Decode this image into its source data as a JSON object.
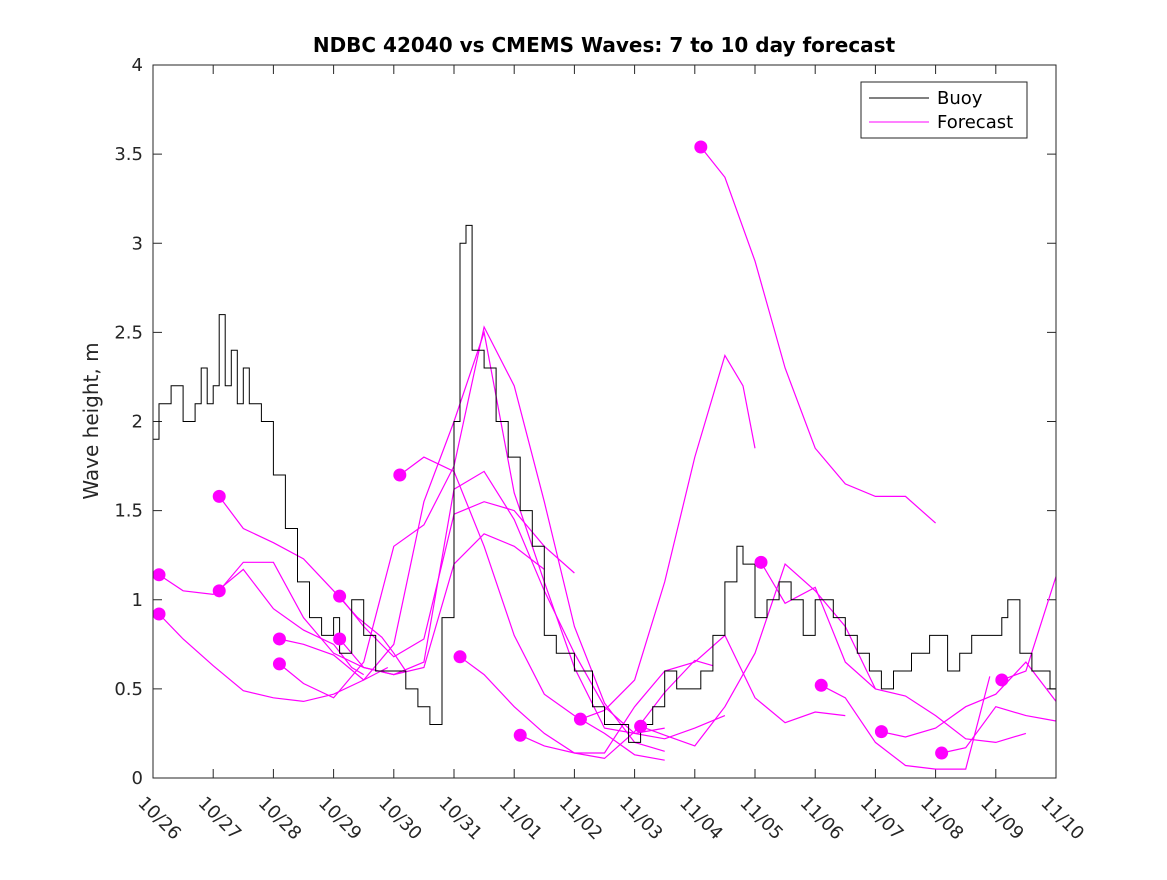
{
  "chart_data": {
    "type": "line",
    "title": "NDBC 42040 vs CMEMS Waves: 7 to 10 day forecast",
    "xlabel": "",
    "ylabel": "Wave height, m",
    "xlim": [
      0,
      15
    ],
    "ylim": [
      0,
      4
    ],
    "x_ticks": [
      0,
      1,
      2,
      3,
      4,
      5,
      6,
      7,
      8,
      9,
      10,
      11,
      12,
      13,
      14,
      15
    ],
    "x_tick_labels": [
      "10/26",
      "10/27",
      "10/28",
      "10/29",
      "10/30",
      "10/31",
      "11/01",
      "11/02",
      "11/03",
      "11/04",
      "11/05",
      "11/06",
      "11/07",
      "11/08",
      "11/09",
      "11/10"
    ],
    "y_ticks": [
      0,
      0.5,
      1,
      1.5,
      2,
      2.5,
      3,
      3.5,
      4
    ],
    "y_tick_labels": [
      "0",
      "0.5",
      "1",
      "1.5",
      "2",
      "2.5",
      "3",
      "3.5",
      "4"
    ],
    "legend": {
      "position": "top-right",
      "entries": [
        {
          "name": "Buoy",
          "color": "#000000"
        },
        {
          "name": "Forecast",
          "color": "#ff00ff"
        }
      ]
    },
    "buoy": {
      "name": "Buoy",
      "color": "#000000",
      "points": [
        [
          0,
          1.9
        ],
        [
          0.1,
          2.1
        ],
        [
          0.3,
          2.2
        ],
        [
          0.5,
          2.0
        ],
        [
          0.7,
          2.1
        ],
        [
          0.8,
          2.3
        ],
        [
          0.9,
          2.1
        ],
        [
          1.0,
          2.2
        ],
        [
          1.1,
          2.6
        ],
        [
          1.2,
          2.2
        ],
        [
          1.3,
          2.4
        ],
        [
          1.4,
          2.1
        ],
        [
          1.5,
          2.3
        ],
        [
          1.6,
          2.1
        ],
        [
          1.8,
          2.0
        ],
        [
          2.0,
          1.7
        ],
        [
          2.2,
          1.4
        ],
        [
          2.4,
          1.1
        ],
        [
          2.6,
          0.9
        ],
        [
          2.8,
          0.8
        ],
        [
          3.0,
          0.9
        ],
        [
          3.1,
          0.7
        ],
        [
          3.3,
          1.0
        ],
        [
          3.5,
          0.8
        ],
        [
          3.7,
          0.6
        ],
        [
          4.0,
          0.6
        ],
        [
          4.2,
          0.5
        ],
        [
          4.4,
          0.4
        ],
        [
          4.6,
          0.3
        ],
        [
          4.8,
          0.9
        ],
        [
          5.0,
          2.0
        ],
        [
          5.1,
          3.0
        ],
        [
          5.2,
          3.1
        ],
        [
          5.3,
          2.4
        ],
        [
          5.5,
          2.3
        ],
        [
          5.7,
          2.0
        ],
        [
          5.9,
          1.8
        ],
        [
          6.1,
          1.5
        ],
        [
          6.3,
          1.3
        ],
        [
          6.5,
          0.8
        ],
        [
          6.7,
          0.7
        ],
        [
          7.0,
          0.6
        ],
        [
          7.3,
          0.4
        ],
        [
          7.5,
          0.3
        ],
        [
          7.7,
          0.3
        ],
        [
          7.9,
          0.2
        ],
        [
          8.1,
          0.3
        ],
        [
          8.3,
          0.4
        ],
        [
          8.5,
          0.6
        ],
        [
          8.7,
          0.5
        ],
        [
          8.9,
          0.5
        ],
        [
          9.1,
          0.6
        ],
        [
          9.3,
          0.8
        ],
        [
          9.5,
          1.1
        ],
        [
          9.7,
          1.3
        ],
        [
          9.8,
          1.2
        ],
        [
          10.0,
          0.9
        ],
        [
          10.2,
          1.0
        ],
        [
          10.4,
          1.1
        ],
        [
          10.6,
          1.0
        ],
        [
          10.8,
          0.8
        ],
        [
          11.0,
          1.0
        ],
        [
          11.3,
          0.9
        ],
        [
          11.5,
          0.8
        ],
        [
          11.7,
          0.7
        ],
        [
          11.9,
          0.6
        ],
        [
          12.1,
          0.5
        ],
        [
          12.3,
          0.6
        ],
        [
          12.6,
          0.7
        ],
        [
          12.9,
          0.8
        ],
        [
          13.2,
          0.6
        ],
        [
          13.4,
          0.7
        ],
        [
          13.6,
          0.8
        ],
        [
          13.9,
          0.8
        ],
        [
          14.1,
          0.9
        ],
        [
          14.2,
          1.0
        ],
        [
          14.4,
          0.7
        ],
        [
          14.6,
          0.6
        ],
        [
          14.9,
          0.5
        ],
        [
          15.0,
          0.4
        ]
      ]
    },
    "forecast_series": [
      {
        "name": "Forecast",
        "points": [
          [
            0.1,
            1.14
          ],
          [
            0.5,
            1.05
          ],
          [
            1.0,
            1.03
          ],
          [
            1.5,
            1.17
          ],
          [
            2.0,
            0.95
          ],
          [
            2.5,
            0.83
          ],
          [
            3.0,
            0.75
          ],
          [
            3.3,
            0.62
          ],
          [
            3.5,
            0.58
          ]
        ]
      },
      {
        "name": "Forecast",
        "points": [
          [
            0.1,
            0.92
          ],
          [
            0.5,
            0.78
          ],
          [
            1.0,
            0.63
          ],
          [
            1.5,
            0.49
          ],
          [
            2.0,
            0.45
          ],
          [
            2.5,
            0.43
          ],
          [
            3.0,
            0.47
          ],
          [
            3.5,
            0.55
          ],
          [
            3.9,
            0.62
          ]
        ]
      },
      {
        "name": "Forecast",
        "points": [
          [
            1.1,
            1.58
          ],
          [
            1.5,
            1.4
          ],
          [
            2.0,
            1.32
          ],
          [
            2.5,
            1.23
          ],
          [
            3.0,
            1.05
          ],
          [
            3.4,
            0.9
          ],
          [
            3.8,
            0.79
          ],
          [
            4.0,
            0.7
          ],
          [
            4.2,
            0.6
          ]
        ]
      },
      {
        "name": "Forecast",
        "points": [
          [
            1.1,
            1.05
          ],
          [
            1.5,
            1.21
          ],
          [
            2.0,
            1.21
          ],
          [
            2.5,
            0.9
          ],
          [
            3.0,
            0.7
          ],
          [
            3.5,
            0.62
          ],
          [
            4.0,
            0.58
          ],
          [
            4.5,
            0.62
          ],
          [
            5.0,
            1.2
          ],
          [
            5.5,
            1.37
          ],
          [
            6.0,
            1.3
          ],
          [
            6.5,
            1.17
          ]
        ]
      },
      {
        "name": "Forecast",
        "points": [
          [
            2.1,
            0.78
          ],
          [
            2.5,
            0.75
          ],
          [
            3.0,
            0.69
          ],
          [
            3.5,
            0.55
          ],
          [
            4.0,
            0.75
          ],
          [
            4.5,
            1.55
          ],
          [
            5.0,
            2.0
          ],
          [
            5.5,
            2.5
          ],
          [
            6.0,
            1.6
          ],
          [
            6.5,
            1.1
          ],
          [
            7.0,
            0.62
          ],
          [
            7.5,
            0.28
          ],
          [
            8.0,
            0.25
          ],
          [
            8.5,
            0.28
          ]
        ]
      },
      {
        "name": "Forecast",
        "points": [
          [
            2.1,
            0.64
          ],
          [
            2.5,
            0.53
          ],
          [
            3.0,
            0.45
          ],
          [
            3.5,
            0.65
          ],
          [
            4.0,
            1.3
          ],
          [
            4.5,
            1.42
          ],
          [
            5.0,
            1.75
          ],
          [
            5.5,
            2.53
          ],
          [
            6.0,
            2.2
          ],
          [
            6.5,
            1.55
          ],
          [
            7.0,
            0.85
          ],
          [
            7.5,
            0.42
          ],
          [
            8.0,
            0.2
          ],
          [
            8.5,
            0.15
          ]
        ]
      },
      {
        "name": "Forecast",
        "points": [
          [
            3.1,
            1.02
          ],
          [
            3.5,
            0.85
          ],
          [
            4.0,
            0.68
          ],
          [
            4.5,
            0.78
          ],
          [
            5.0,
            1.48
          ],
          [
            5.5,
            1.55
          ],
          [
            6.0,
            1.5
          ],
          [
            6.5,
            1.3
          ],
          [
            7.0,
            1.15
          ]
        ]
      },
      {
        "name": "Forecast",
        "points": [
          [
            3.1,
            0.78
          ],
          [
            3.5,
            0.62
          ],
          [
            4.0,
            0.58
          ],
          [
            4.5,
            0.65
          ],
          [
            5.0,
            1.62
          ],
          [
            5.5,
            1.72
          ],
          [
            6.0,
            1.45
          ],
          [
            6.5,
            1.05
          ],
          [
            7.0,
            0.7
          ],
          [
            7.5,
            0.4
          ],
          [
            8.0,
            0.25
          ],
          [
            8.5,
            0.22
          ],
          [
            9.0,
            0.28
          ],
          [
            9.5,
            0.35
          ]
        ]
      },
      {
        "name": "Forecast",
        "points": [
          [
            4.1,
            1.7
          ],
          [
            4.5,
            1.8
          ],
          [
            5.0,
            1.72
          ],
          [
            5.5,
            1.3
          ],
          [
            6.0,
            0.8
          ],
          [
            6.5,
            0.47
          ],
          [
            7.0,
            0.35
          ],
          [
            7.5,
            0.25
          ],
          [
            8.0,
            0.13
          ],
          [
            8.5,
            0.1
          ]
        ]
      },
      {
        "name": "Forecast",
        "points": [
          [
            5.1,
            0.68
          ],
          [
            5.5,
            0.58
          ],
          [
            6.0,
            0.4
          ],
          [
            6.5,
            0.25
          ],
          [
            7.0,
            0.14
          ],
          [
            7.5,
            0.11
          ],
          [
            8.0,
            0.26
          ],
          [
            8.5,
            0.48
          ],
          [
            9.0,
            0.66
          ],
          [
            9.3,
            0.63
          ]
        ]
      },
      {
        "name": "Forecast",
        "points": [
          [
            6.1,
            0.24
          ],
          [
            6.5,
            0.18
          ],
          [
            7.0,
            0.14
          ],
          [
            7.5,
            0.14
          ],
          [
            8.0,
            0.4
          ],
          [
            8.5,
            0.6
          ],
          [
            9.0,
            0.65
          ],
          [
            9.5,
            0.8
          ],
          [
            10.0,
            0.45
          ],
          [
            10.5,
            0.31
          ],
          [
            11.0,
            0.37
          ],
          [
            11.5,
            0.35
          ]
        ]
      },
      {
        "name": "Forecast",
        "points": [
          [
            7.1,
            0.33
          ],
          [
            7.5,
            0.38
          ],
          [
            8.0,
            0.55
          ],
          [
            8.5,
            1.1
          ],
          [
            9.0,
            1.8
          ],
          [
            9.5,
            2.37
          ],
          [
            9.8,
            2.2
          ],
          [
            10.0,
            1.85
          ]
        ]
      },
      {
        "name": "Forecast",
        "points": [
          [
            8.1,
            0.29
          ],
          [
            8.5,
            0.24
          ],
          [
            9.0,
            0.18
          ],
          [
            9.5,
            0.4
          ],
          [
            10.0,
            0.7
          ],
          [
            10.5,
            1.2
          ],
          [
            11.0,
            1.05
          ],
          [
            11.5,
            0.85
          ],
          [
            12.0,
            0.5
          ]
        ]
      },
      {
        "name": "Forecast",
        "points": [
          [
            9.1,
            3.54
          ],
          [
            9.5,
            3.37
          ],
          [
            10.0,
            2.9
          ],
          [
            10.5,
            2.3
          ],
          [
            11.0,
            1.85
          ],
          [
            11.5,
            1.65
          ],
          [
            12.0,
            1.58
          ],
          [
            12.5,
            1.58
          ],
          [
            13.0,
            1.43
          ]
        ]
      },
      {
        "name": "Forecast",
        "points": [
          [
            10.1,
            1.21
          ],
          [
            10.5,
            0.98
          ],
          [
            11.0,
            1.07
          ],
          [
            11.5,
            0.65
          ],
          [
            12.0,
            0.5
          ],
          [
            12.5,
            0.46
          ],
          [
            13.0,
            0.35
          ],
          [
            13.5,
            0.22
          ],
          [
            14.0,
            0.2
          ],
          [
            14.5,
            0.25
          ]
        ]
      },
      {
        "name": "Forecast",
        "points": [
          [
            11.1,
            0.52
          ],
          [
            11.5,
            0.45
          ],
          [
            12.0,
            0.2
          ],
          [
            12.5,
            0.07
          ],
          [
            13.0,
            0.05
          ],
          [
            13.5,
            0.05
          ],
          [
            13.9,
            0.57
          ]
        ]
      },
      {
        "name": "Forecast",
        "points": [
          [
            12.1,
            0.26
          ],
          [
            12.5,
            0.23
          ],
          [
            13.0,
            0.28
          ],
          [
            13.5,
            0.4
          ],
          [
            14.0,
            0.47
          ],
          [
            14.5,
            0.65
          ],
          [
            15.0,
            0.43
          ]
        ]
      },
      {
        "name": "Forecast",
        "points": [
          [
            13.1,
            0.14
          ],
          [
            13.5,
            0.17
          ],
          [
            14.0,
            0.4
          ],
          [
            14.5,
            0.35
          ],
          [
            15.0,
            0.32
          ]
        ]
      },
      {
        "name": "Forecast",
        "points": [
          [
            14.1,
            0.55
          ],
          [
            14.5,
            0.6
          ],
          [
            15.0,
            1.13
          ]
        ]
      }
    ],
    "forecast_start_markers": [
      [
        0.1,
        1.14
      ],
      [
        0.1,
        0.92
      ],
      [
        1.1,
        1.58
      ],
      [
        1.1,
        1.05
      ],
      [
        2.1,
        0.78
      ],
      [
        2.1,
        0.64
      ],
      [
        3.1,
        1.02
      ],
      [
        3.1,
        0.78
      ],
      [
        4.1,
        1.7
      ],
      [
        5.1,
        0.68
      ],
      [
        6.1,
        0.24
      ],
      [
        7.1,
        0.33
      ],
      [
        8.1,
        0.29
      ],
      [
        9.1,
        3.54
      ],
      [
        10.1,
        1.21
      ],
      [
        11.1,
        0.52
      ],
      [
        12.1,
        0.26
      ],
      [
        13.1,
        0.14
      ],
      [
        14.1,
        0.55
      ]
    ]
  }
}
